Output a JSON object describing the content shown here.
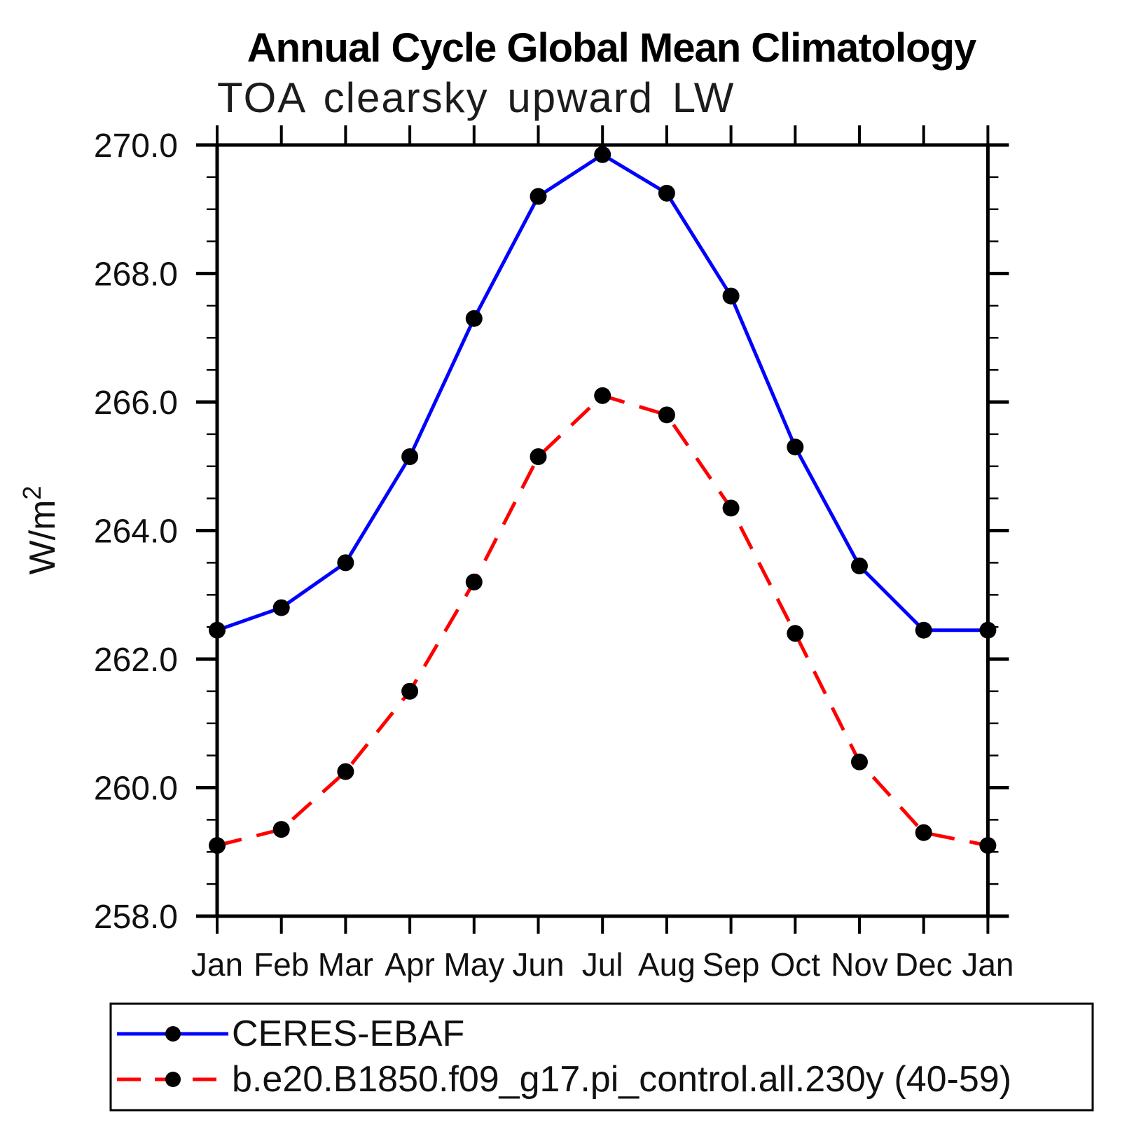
{
  "window": {
    "background_color": "#ffffff",
    "accent_blue": "#0000ff",
    "accent_red": "#ff0000",
    "axis_color": "#000000"
  },
  "chart_data": {
    "type": "line",
    "title": "Annual Cycle Global Mean Climatology",
    "subtitle": "TOA clearsky upward LW",
    "ylabel": "W/m²",
    "ylabel_base": "W/m",
    "ylabel_exponent": "2",
    "categories": [
      "Jan",
      "Feb",
      "Mar",
      "Apr",
      "May",
      "Jun",
      "Jul",
      "Aug",
      "Sep",
      "Oct",
      "Nov",
      "Dec",
      "Jan"
    ],
    "ylim": [
      258.0,
      270.0
    ],
    "ytick_step": 2.0,
    "yminor_step": 0.5,
    "ytick_labels": [
      "258.0",
      "260.0",
      "262.0",
      "264.0",
      "266.0",
      "268.0",
      "270.0"
    ],
    "grid": false,
    "legend_position": "bottom-left-box",
    "series": [
      {
        "name": "CERES-EBAF",
        "color": "#0000ff",
        "line_style": "solid",
        "marker": "filled-circle",
        "marker_color": "#000000",
        "values": [
          262.45,
          262.8,
          263.5,
          265.15,
          267.3,
          269.2,
          269.85,
          269.25,
          267.65,
          265.3,
          263.45,
          262.45,
          262.45
        ]
      },
      {
        "name": "b.e20.B1850.f09_g17.pi_control.all.230y (40-59)",
        "color": "#ff0000",
        "line_style": "dashed",
        "marker": "filled-circle",
        "marker_color": "#000000",
        "values": [
          259.1,
          259.35,
          260.25,
          261.5,
          263.2,
          265.15,
          266.1,
          265.8,
          264.35,
          262.4,
          260.4,
          259.3,
          259.1
        ]
      }
    ]
  }
}
